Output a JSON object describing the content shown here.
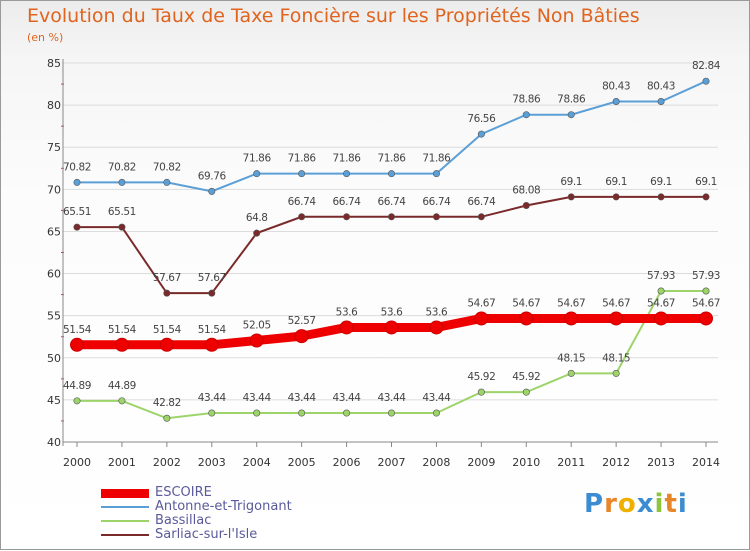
{
  "header": {
    "title": "Evolution du Taux de Taxe Foncière sur les Propriétés Non Bâties",
    "unit": "(en %)"
  },
  "brand": {
    "letters": [
      "P",
      "r",
      "o",
      "x",
      "i",
      "t",
      "i"
    ],
    "colors": [
      "#3c8cd2",
      "#e8862a",
      "#f0b000",
      "#3c8cd2",
      "#8cc43c",
      "#e8862a",
      "#3c8cd2"
    ]
  },
  "chart_data": {
    "type": "line",
    "title": "Evolution du Taux de Taxe Foncière sur les Propriétés Non Bâties",
    "ylabel": "(en %)",
    "xlabel": "",
    "ylim": [
      40,
      85
    ],
    "y_ticks": [
      40,
      45,
      50,
      55,
      60,
      65,
      70,
      75,
      80,
      85
    ],
    "categories": [
      "2000",
      "2001",
      "2002",
      "2003",
      "2004",
      "2005",
      "2006",
      "2007",
      "2008",
      "2009",
      "2010",
      "2011",
      "2012",
      "2013",
      "2014"
    ],
    "legend_position": "bottom-left",
    "series": [
      {
        "name": "ESCOIRE",
        "color": "#ee0000",
        "style": "thick",
        "values": [
          51.54,
          51.54,
          51.54,
          51.54,
          52.05,
          52.57,
          53.6,
          53.6,
          53.6,
          54.67,
          54.67,
          54.67,
          54.67,
          54.67,
          54.67
        ],
        "labels": [
          "51.54",
          "51.54",
          "51.54",
          "51.54",
          "52.05",
          "52.57",
          "53.6",
          "53.6",
          "53.6",
          "54.67",
          "54.67",
          "54.67",
          "54.67",
          "54.67",
          "54.67"
        ]
      },
      {
        "name": "Antonne-et-Trigonant",
        "color": "#5b9fd6",
        "style": "thin",
        "values": [
          70.82,
          70.82,
          70.82,
          69.76,
          71.86,
          71.86,
          71.86,
          71.86,
          71.86,
          76.56,
          78.86,
          78.86,
          80.43,
          80.43,
          82.84
        ],
        "labels": [
          "70.82",
          "70.82",
          "70.82",
          "69.76",
          "71.86",
          "71.86",
          "71.86",
          "71.86",
          "71.86",
          "76.56",
          "78.86",
          "78.86",
          "80.43",
          "80.43",
          "82.84"
        ]
      },
      {
        "name": "Bassillac",
        "color": "#9dd46a",
        "style": "thin",
        "values": [
          44.89,
          44.89,
          42.82,
          43.44,
          43.44,
          43.44,
          43.44,
          43.44,
          43.44,
          45.92,
          45.92,
          48.15,
          48.15,
          57.93,
          57.93
        ],
        "labels": [
          "44.89",
          "44.89",
          "42.82",
          "43.44",
          "43.44",
          "43.44",
          "43.44",
          "43.44",
          "43.44",
          "45.92",
          "45.92",
          "48.15",
          "48.15",
          "57.93",
          "57.93"
        ]
      },
      {
        "name": "Sarliac-sur-l'Isle",
        "color": "#7a2a2a",
        "style": "thin",
        "values": [
          65.51,
          65.51,
          57.67,
          57.67,
          64.8,
          66.74,
          66.74,
          66.74,
          66.74,
          66.74,
          68.08,
          69.1,
          69.1,
          69.1,
          69.1
        ],
        "labels": [
          "65.51",
          "65.51",
          "57.67",
          "57.67",
          "64.8",
          "66.74",
          "66.74",
          "66.74",
          "66.74",
          "66.74",
          "68.08",
          "69.1",
          "69.1",
          "69.1",
          "69.1"
        ]
      }
    ]
  }
}
